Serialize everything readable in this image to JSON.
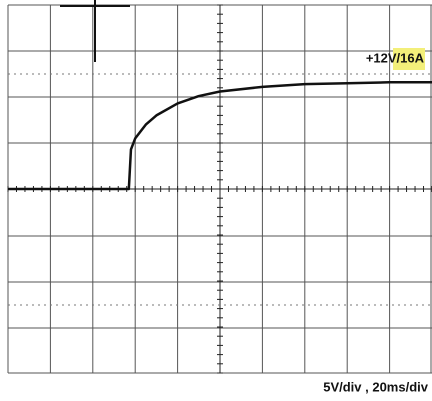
{
  "chart_data": {
    "type": "line",
    "annotation": "+12V/16A",
    "scale_label": "5V/div , 20ms/div",
    "x": [
      0,
      20,
      40,
      57,
      58,
      60,
      65,
      70,
      80,
      90,
      100,
      120,
      140,
      160,
      180,
      200
    ],
    "series": [
      {
        "color": "#111111",
        "values": [
          0,
          0,
          0,
          0,
          4.3,
          5.5,
          7,
          8,
          9.3,
          10.1,
          10.6,
          11.1,
          11.4,
          11.5,
          11.6,
          11.6
        ]
      }
    ],
    "xlim": [
      0,
      200
    ],
    "ylim": [
      -20,
      20
    ],
    "grid": true
  }
}
